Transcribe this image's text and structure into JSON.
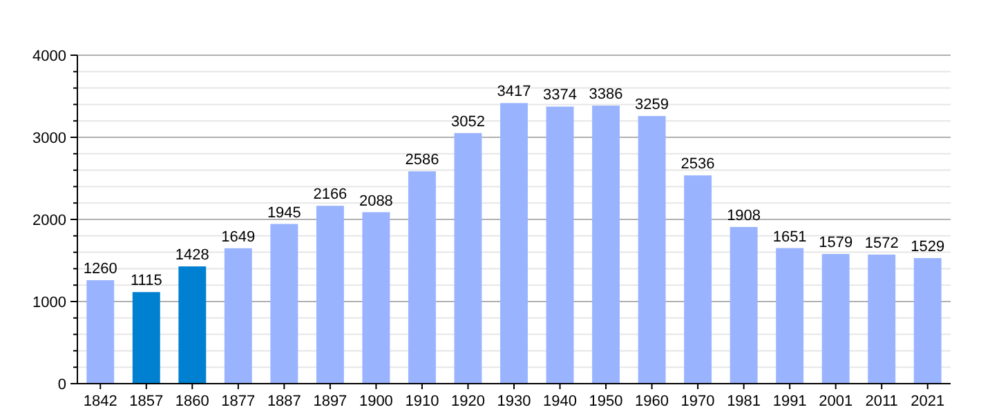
{
  "chart_data": {
    "type": "bar",
    "categories": [
      "1842",
      "1857",
      "1860",
      "1877",
      "1887",
      "1897",
      "1900",
      "1910",
      "1920",
      "1930",
      "1940",
      "1950",
      "1960",
      "1970",
      "1981",
      "1991",
      "2001",
      "2011",
      "2021"
    ],
    "values": [
      1260,
      1115,
      1428,
      1649,
      1945,
      2166,
      2088,
      2586,
      3052,
      3417,
      3374,
      3386,
      3259,
      2536,
      1908,
      1651,
      1579,
      1572,
      1529
    ],
    "colors": [
      "#99b3ff",
      "#0080d0",
      "#0080d0",
      "#99b3ff",
      "#99b3ff",
      "#99b3ff",
      "#99b3ff",
      "#99b3ff",
      "#99b3ff",
      "#99b3ff",
      "#99b3ff",
      "#99b3ff",
      "#99b3ff",
      "#99b3ff",
      "#99b3ff",
      "#99b3ff",
      "#99b3ff",
      "#99b3ff",
      "#99b3ff"
    ],
    "ylim": [
      0,
      4000
    ],
    "yticks": [
      0,
      {
        "value": 200,
        "label": null
      },
      {
        "value": 400,
        "label": null
      },
      {
        "value": 600,
        "label": null
      },
      {
        "value": 800,
        "label": null
      },
      1000,
      {
        "value": 1200,
        "label": null
      },
      {
        "value": 1400,
        "label": null
      },
      {
        "value": 1600,
        "label": null
      },
      {
        "value": 1800,
        "label": null
      },
      2000,
      {
        "value": 2200,
        "label": null
      },
      {
        "value": 2400,
        "label": null
      },
      {
        "value": 2600,
        "label": null
      },
      {
        "value": 2800,
        "label": null
      },
      3000,
      {
        "value": 3200,
        "label": null
      },
      {
        "value": 3400,
        "label": null
      },
      {
        "value": 3600,
        "label": null
      },
      {
        "value": 3800,
        "label": null
      },
      4000
    ],
    "grid": "y",
    "data_labels": true
  }
}
